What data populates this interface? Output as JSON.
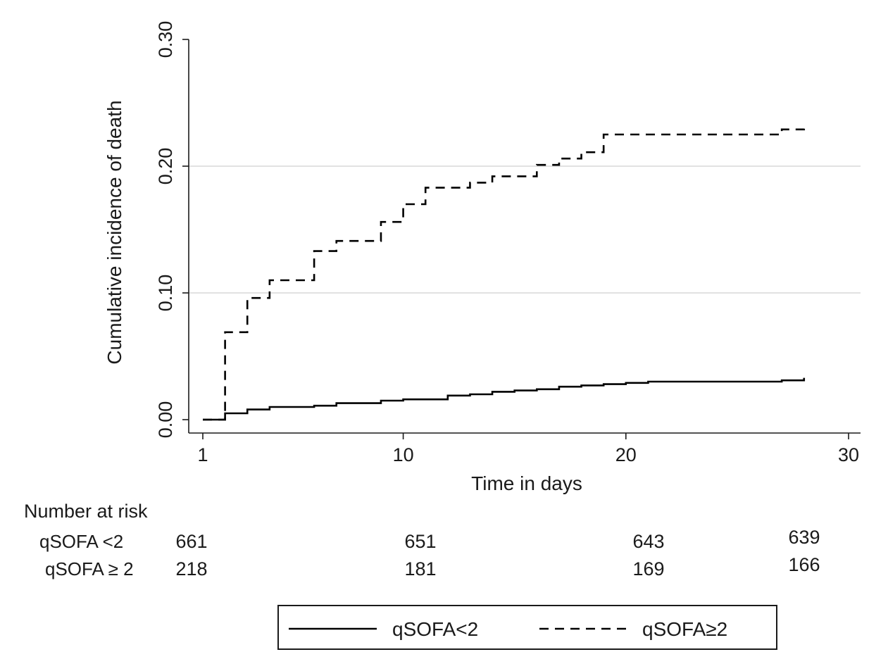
{
  "chart_data": {
    "type": "line",
    "title": "",
    "xlabel": "Time in days",
    "ylabel": "Cumulative incidence of death",
    "xlim": [
      1,
      30
    ],
    "ylim": [
      0,
      0.3
    ],
    "x_ticks": [
      1,
      10,
      20,
      30
    ],
    "x_tick_labels": [
      "1",
      "10",
      "20",
      "30"
    ],
    "y_ticks": [
      0,
      0.1,
      0.2,
      0.3
    ],
    "y_tick_labels": [
      "0.00",
      "0.10",
      "0.20",
      "0.30"
    ],
    "grid": "horizontal",
    "step": true,
    "series": [
      {
        "name": "qSOFA<2",
        "line_style": "solid",
        "color": "#000000",
        "x": [
          1,
          2,
          3,
          4,
          5,
          6,
          7,
          8,
          9,
          10,
          11,
          12,
          13,
          14,
          15,
          16,
          17,
          18,
          19,
          20,
          21,
          22,
          23,
          24,
          25,
          26,
          27,
          28
        ],
        "y": [
          0.0,
          0.005,
          0.008,
          0.01,
          0.01,
          0.011,
          0.013,
          0.013,
          0.015,
          0.016,
          0.016,
          0.019,
          0.02,
          0.022,
          0.023,
          0.024,
          0.026,
          0.027,
          0.028,
          0.029,
          0.03,
          0.03,
          0.03,
          0.03,
          0.03,
          0.03,
          0.031,
          0.033
        ]
      },
      {
        "name": "qSOFA≥2",
        "line_style": "dashed",
        "color": "#000000",
        "x": [
          1,
          2,
          3,
          4,
          5,
          6,
          7,
          8,
          9,
          10,
          11,
          12,
          13,
          14,
          15,
          16,
          17,
          18,
          19,
          20,
          21,
          22,
          23,
          24,
          25,
          26,
          27,
          28
        ],
        "y": [
          0.0,
          0.069,
          0.096,
          0.11,
          0.11,
          0.133,
          0.141,
          0.141,
          0.156,
          0.17,
          0.183,
          0.183,
          0.187,
          0.192,
          0.192,
          0.201,
          0.206,
          0.211,
          0.225,
          0.225,
          0.225,
          0.225,
          0.225,
          0.225,
          0.225,
          0.225,
          0.229,
          0.232
        ]
      }
    ],
    "number_at_risk": {
      "title": "Number at risk",
      "rows": [
        {
          "label": "qSOFA <2",
          "values": [
            "661",
            "651",
            "643",
            "639"
          ]
        },
        {
          "label": "qSOFA ≥ 2",
          "values": [
            "218",
            "181",
            "169",
            "166"
          ]
        }
      ]
    },
    "legend": {
      "placement": "bottom",
      "entries": [
        {
          "label": "qSOFA<2",
          "line_style": "solid"
        },
        {
          "label": "qSOFA≥2",
          "line_style": "dashed"
        }
      ]
    }
  }
}
